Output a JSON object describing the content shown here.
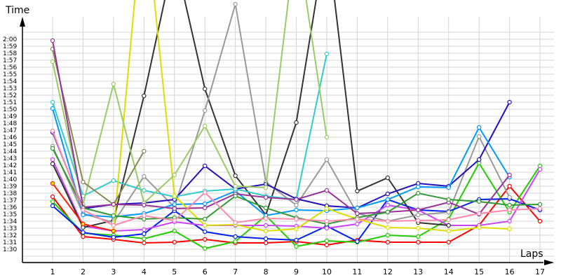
{
  "chart_data": {
    "type": "line",
    "ylabel": "Time",
    "xlabel": "Laps",
    "x": [
      1,
      2,
      3,
      4,
      5,
      6,
      7,
      8,
      9,
      10,
      11,
      12,
      13,
      14,
      15,
      16,
      17
    ],
    "yticks": [
      "1:30",
      "1:31",
      "1:32",
      "1:33",
      "1:34",
      "1:35",
      "1:36",
      "1:37",
      "1:38",
      "1:39",
      "1:40",
      "1:41",
      "1:42",
      "1:43",
      "1:44",
      "1:45",
      "1:46",
      "1:47",
      "1:48",
      "1:49",
      "1:50",
      "1:51",
      "1:52",
      "1:53",
      "1:54",
      "1:55",
      "1:56",
      "1:57",
      "1:58",
      "1:59",
      "2:00"
    ],
    "ylim": [
      "1:28",
      "2:01.5"
    ],
    "grid": true,
    "series": [
      {
        "color": "#ff0000",
        "fill": "#ffffff",
        "values": [
          "1:37.5",
          "1:31.8",
          "1:31.4",
          "1:30.9",
          "1:31.0",
          "1:31.4",
          "1:30.9",
          "1:30.9",
          "1:31.1",
          "1:30.6",
          "1:31.3",
          "1:31.0",
          "1:31.0",
          "1:31.0",
          "1:33.4",
          "1:39.0",
          "1:34.0"
        ]
      },
      {
        "color": "#22cc00",
        "fill": "#ffffff",
        "values": [
          "1:36.8",
          "1:32.3",
          "1:32.0",
          "1:31.5",
          "1:32.6",
          "1:30.1",
          "1:31.1",
          "1:34.8",
          "1:30.4",
          "1:31.2",
          "1:31.0",
          "1:32.0",
          "1:31.8",
          "1:34.3",
          "1:42.3",
          "1:35.3",
          "1:41.9"
        ]
      },
      {
        "color": "#0022ee",
        "fill": "#ffffff",
        "values": [
          "1:36.2",
          "1:32.4",
          "1:31.7",
          "1:32.2",
          "1:35.5",
          "1:32.5",
          "1:31.8",
          "1:31.5",
          "1:31.3",
          "1:33.3",
          "1:31.1",
          "1:37.1",
          "1:35.6",
          "1:35.4",
          "1:37.1",
          "1:37.2",
          "1:35.6"
        ]
      },
      {
        "color": "#cc44ff",
        "fill": "#ffffff",
        "values": [
          "1:42.8",
          "1:33.3",
          "1:32.6",
          "1:32.8",
          "1:33.9",
          "1:33.4",
          "1:33.4",
          "1:33.4",
          "1:33.3",
          "1:33.0",
          "1:33.6",
          "1:36.3",
          "1:35.6",
          "1:33.4",
          "1:33.4",
          "1:34.0",
          "1:41.4"
        ]
      },
      {
        "color": "#333333",
        "fill": "#ffffff",
        "values": [
          "1:42.2",
          "1:33.1",
          "1:34.1",
          "1:51.9",
          "2:12",
          "1:52.9",
          "1:40.5",
          "1:34.9",
          "1:48.1",
          "2:15",
          "1:38.3",
          "1:40.2",
          "1:33.8",
          "1:33.4",
          null,
          null,
          null
        ]
      },
      {
        "color": "#999999",
        "fill": "#ffffff",
        "values": [
          "1:44.7",
          "1:35.1",
          "1:33.8",
          "1:40.4",
          "1:36.0",
          "1:49.8",
          "2:05",
          "1:39.6",
          "1:36.3",
          "1:42.8",
          "1:35.1",
          "1:34.0",
          "1:34.9",
          "1:35.3",
          "1:46.1",
          "1:37.4",
          null
        ]
      },
      {
        "color": "#2211bb",
        "fill": "#ffffff",
        "values": [
          "1:46.7",
          "1:35.8",
          "1:36.4",
          "1:36.6",
          "1:37.1",
          "1:41.9",
          "1:38.6",
          "1:39.3",
          "1:37.2",
          "1:36.2",
          "1:35.9",
          "1:37.9",
          "1:39.4",
          "1:39.0",
          "1:42.8",
          "1:51.0",
          null
        ]
      },
      {
        "color": "#0099ff",
        "fill": "#ffffff",
        "values": [
          "1:50.1",
          "1:34.9",
          "1:34.6",
          "1:35.1",
          "1:36.4",
          "1:36.5",
          "1:38.3",
          "1:34.8",
          "1:35.6",
          "1:35.5",
          "1:35.9",
          "1:37.1",
          "1:38.9",
          "1:38.8",
          "1:47.4",
          "1:40.3",
          null
        ]
      },
      {
        "color": "#33cccc",
        "fill": "#ffffff",
        "values": [
          "1:51.0",
          "1:37.6",
          "1:39.8",
          "1:38.4",
          "1:37.5",
          "1:38.3",
          "1:38.6",
          "1:37.6",
          "1:37.1",
          "1:57.9",
          null,
          null,
          null,
          null,
          null,
          null,
          null
        ]
      },
      {
        "color": "#dddd00",
        "fill": "#ffffff",
        "values": [
          null,
          null,
          "1:32.6",
          "2:20",
          "1:37.6",
          "1:33.4",
          "1:33.5",
          "1:32.6",
          "1:32.9",
          "1:35.8",
          "1:34.3",
          "1:33.1",
          "1:33.0",
          "1:32.6",
          "1:33.1",
          "1:32.9",
          null
        ]
      },
      {
        "color": "#ff2200",
        "fill": "#ffee00",
        "values": [
          "1:39.4",
          "1:33.6",
          "1:32.6",
          null,
          null,
          null,
          null,
          null,
          null,
          null,
          null,
          null,
          null,
          null,
          null,
          null,
          null
        ]
      },
      {
        "color": "#99cc66",
        "fill": "#ffffff",
        "values": [
          "1:56.8",
          "1:36.4",
          "1:53.6",
          "1:36.6",
          "1:40.6",
          "1:47.6",
          "1:39.0",
          "1:38.8",
          "2:15",
          "1:46.0",
          null,
          null,
          null,
          null,
          null,
          null,
          null
        ]
      },
      {
        "color": "#888855",
        "fill": "#ffffff",
        "values": [
          "1:58.6",
          "1:39.6",
          "1:36.4",
          "1:44.0",
          null,
          null,
          null,
          null,
          null,
          null,
          null,
          null,
          null,
          null,
          null,
          null,
          null
        ]
      },
      {
        "color": "#993399",
        "fill": "#ffffff",
        "values": [
          "1:59.8",
          "1:36.0",
          "1:36.4",
          "1:36.3",
          "1:35.8",
          "1:35.9",
          "1:37.9",
          "1:37.4",
          "1:37.1",
          "1:38.4",
          "1:35.1",
          "1:35.3",
          "1:35.6",
          "1:36.7",
          "1:35.0",
          "1:40.6",
          null
        ]
      },
      {
        "color": "#339933",
        "fill": "#ffffff",
        "values": [
          "1:44.4",
          "1:35.9",
          "1:34.8",
          "1:34.3",
          "1:34.5",
          "1:34.3",
          "1:37.6",
          "1:35.9",
          "1:34.5",
          "1:33.6",
          "1:34.5",
          "1:35.3",
          "1:38.0",
          "1:37.1",
          "1:36.8",
          "1:36.3",
          "1:36.4"
        ]
      },
      {
        "color": "#ff88aa",
        "fill": "#ffffff",
        "values": [
          "1:46.9",
          "1:35.6",
          "1:33.4",
          "1:34.8",
          "1:34.1",
          "1:38.1",
          "1:33.8",
          "1:34.4",
          "1:34.3",
          "1:34.0",
          "1:34.3",
          "1:34.0",
          "1:34.1",
          "1:34.2",
          "1:35.1",
          "1:35.6",
          "1:35.8"
        ]
      }
    ]
  }
}
